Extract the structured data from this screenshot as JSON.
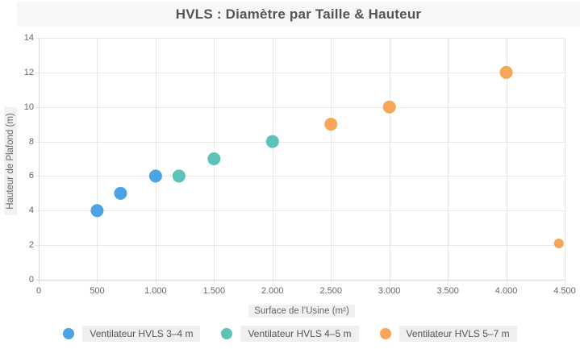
{
  "title": {
    "text": "HVLS : Diamètre par Taille & Hauteur",
    "bar_color": "#f7f7f7",
    "text_color": "#545454"
  },
  "chart_data": {
    "type": "scatter",
    "title": "HVLS : Diamètre par Taille & Hauteur",
    "xlabel": "Surface de l’Usine (m²)",
    "ylabel": "Hauteur de Plafond (m)",
    "xlim": [
      0,
      4500
    ],
    "ylim": [
      0,
      14
    ],
    "x_ticks": [
      0,
      500,
      1000,
      1500,
      2000,
      2500,
      3000,
      3500,
      4000,
      4500
    ],
    "x_tick_labels": [
      "0",
      "500",
      "1.000",
      "1.500",
      "2.000",
      "2.500",
      "3.000",
      "3.500",
      "4.000",
      "4.500"
    ],
    "y_ticks": [
      0,
      2,
      4,
      6,
      8,
      10,
      12,
      14
    ],
    "y_tick_labels": [
      "0",
      "2",
      "4",
      "6",
      "8",
      "10",
      "12",
      "14"
    ],
    "grid": true,
    "grid_color": "#e8e8e8",
    "axis_color": "#d9d9d9",
    "tick_text_color": "#666666",
    "legend_position": "bottom",
    "series": [
      {
        "name": "Ventilateur HVLS 3–4 m",
        "color": "#4BA3E3",
        "points": [
          {
            "x": 500,
            "y": 4,
            "r": 8
          },
          {
            "x": 700,
            "y": 5,
            "r": 8
          },
          {
            "x": 1000,
            "y": 6,
            "r": 8
          }
        ]
      },
      {
        "name": "Ventilateur HVLS 4–5 m",
        "color": "#5BC3B8",
        "points": [
          {
            "x": 1200,
            "y": 6,
            "r": 8
          },
          {
            "x": 1500,
            "y": 7,
            "r": 8
          },
          {
            "x": 2000,
            "y": 8,
            "r": 8
          }
        ]
      },
      {
        "name": "Ventilateur HVLS 5–7 m",
        "color": "#F6A656",
        "points": [
          {
            "x": 2500,
            "y": 9,
            "r": 8
          },
          {
            "x": 3000,
            "y": 10,
            "r": 8
          },
          {
            "x": 4000,
            "y": 12,
            "r": 8
          },
          {
            "x": 4450,
            "y": 2.1,
            "r": 6
          }
        ]
      }
    ]
  }
}
